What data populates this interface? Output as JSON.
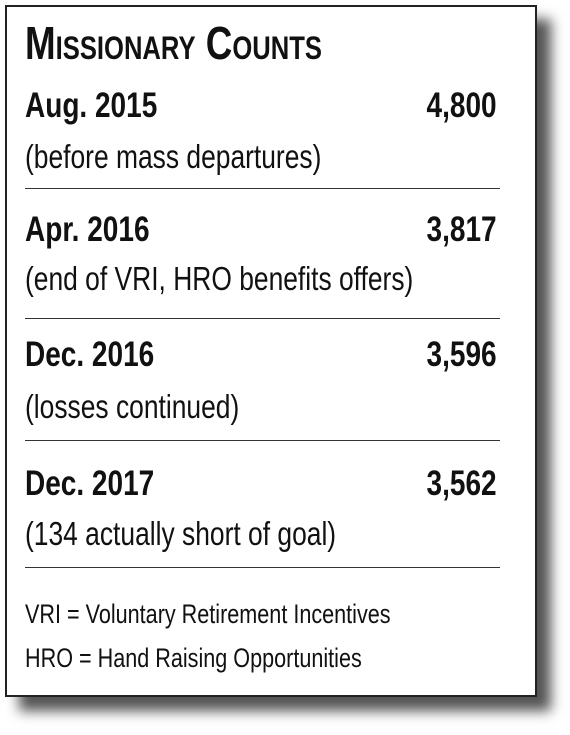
{
  "title": "Missionary Counts",
  "rows": [
    {
      "date": "Aug. 2015",
      "count": "4,800",
      "note": "(before mass departures)"
    },
    {
      "date": "Apr. 2016",
      "count": "3,817",
      "note": "(end of VRI, HRO benefits offers)"
    },
    {
      "date": "Dec. 2016",
      "count": "3,596",
      "note": "(losses continued)"
    },
    {
      "date": "Dec. 2017",
      "count": "3,562",
      "note": "(134 actually short of goal)"
    }
  ],
  "footnotes": [
    "VRI = Voluntary Retirement Incentives",
    "HRO = Hand Raising Opportunities"
  ]
}
